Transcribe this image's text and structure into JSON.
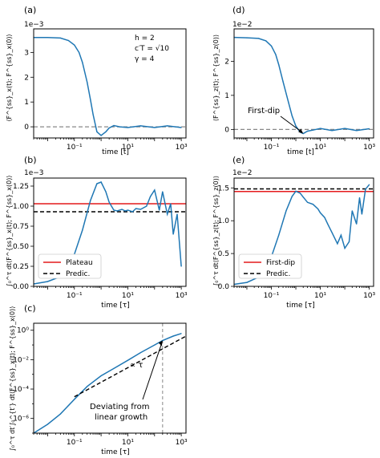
{
  "colors": {
    "series": "#1f77b4",
    "plateau": "#e41a1c",
    "predic": "#000000",
    "zero": "#888888",
    "frame": "#000000"
  },
  "chart_data": [
    {
      "panel": "(a)",
      "type": "line",
      "xscale": "log",
      "xlim": [
        0.003,
        1500
      ],
      "ylim": [
        -0.00045,
        0.00395
      ],
      "ylabel": "⟨F^{ss}_x(t); F^{ss}_x(0)⟩",
      "xlabel": "time [t]",
      "multiplier": "1e−3",
      "yticks": [
        {
          "v": 0,
          "label": "0"
        },
        {
          "v": 0.001,
          "label": "1"
        },
        {
          "v": 0.002,
          "label": "2"
        },
        {
          "v": 0.003,
          "label": "3"
        }
      ],
      "xticks": [
        {
          "v": 0.1,
          "label": "10⁻¹"
        },
        {
          "v": 10,
          "label": "10¹"
        },
        {
          "v": 1000,
          "label": "10³"
        }
      ],
      "params": [
        "h = 2",
        "c′T = √10",
        "γ = 4"
      ],
      "zero_line": true,
      "series": [
        {
          "x": [
            0.003,
            0.01,
            0.03,
            0.06,
            0.1,
            0.15,
            0.2,
            0.3,
            0.4,
            0.5,
            0.7,
            1,
            1.5,
            2,
            3,
            5,
            10,
            30,
            100,
            300,
            1000
          ],
          "y": [
            0.0036,
            0.0036,
            0.00358,
            0.00348,
            0.0033,
            0.003,
            0.0026,
            0.0018,
            0.0011,
            0.0005,
            -0.0002,
            -0.00035,
            -0.0002,
            -5e-05,
            5e-05,
            0.0,
            -3e-05,
            4e-05,
            -3e-05,
            4e-05,
            -3e-05
          ]
        }
      ]
    },
    {
      "panel": "(b)",
      "type": "line",
      "xscale": "log",
      "xlim": [
        0.003,
        1500
      ],
      "ylim": [
        0,
        0.00135
      ],
      "ylabel": "∫₀^τ dt⟨F^{ss}_x(t); F^{ss}_x(0)⟩",
      "xlabel": "time [τ]",
      "multiplier": "1e−3",
      "yticks": [
        {
          "v": 0,
          "label": "0.00"
        },
        {
          "v": 0.00025,
          "label": "0.25"
        },
        {
          "v": 0.0005,
          "label": "0.50"
        },
        {
          "v": 0.00075,
          "label": "0.75"
        },
        {
          "v": 0.001,
          "label": "1.00"
        },
        {
          "v": 0.00125,
          "label": "1.25"
        }
      ],
      "xticks": [
        {
          "v": 0.1,
          "label": "10⁻¹"
        },
        {
          "v": 10,
          "label": "10¹"
        },
        {
          "v": 1000,
          "label": "10³"
        }
      ],
      "hlines": [
        {
          "name": "Plateau",
          "y": 0.00103,
          "color": "#e41a1c",
          "dash": false
        },
        {
          "name": "Predic.",
          "y": 0.00093,
          "color": "#000000",
          "dash": true
        }
      ],
      "legend": "bottom-left",
      "series": [
        {
          "x": [
            0.003,
            0.01,
            0.03,
            0.06,
            0.1,
            0.2,
            0.4,
            0.7,
            1,
            1.5,
            2,
            3,
            4,
            6,
            8,
            10,
            15,
            20,
            30,
            50,
            70,
            100,
            150,
            200,
            300,
            400,
            500,
            700,
            1000
          ],
          "y": [
            3e-05,
            6e-05,
            0.00012,
            0.00025,
            0.0004,
            0.0007,
            0.00107,
            0.00128,
            0.0013,
            0.00118,
            0.00105,
            0.00095,
            0.00094,
            0.00096,
            0.00094,
            0.00095,
            0.00093,
            0.00097,
            0.00096,
            0.001,
            0.00112,
            0.0012,
            0.00095,
            0.00118,
            0.0009,
            0.00103,
            0.00065,
            0.0009,
            0.00025
          ]
        }
      ]
    },
    {
      "panel": "(c)",
      "type": "line",
      "xscale": "log",
      "yscale": "log",
      "xlim": [
        0.003,
        1500
      ],
      "ylim": [
        1e-07,
        3
      ],
      "ylabel": "∫₀^τ dt′∫₀^{t′} dt⟨F^{ss}_x(t); F^{ss}_x(0)⟩",
      "xlabel": "time [τ]",
      "yticks": [
        {
          "v": 1e-06,
          "label": "10⁻⁶"
        },
        {
          "v": 0.0001,
          "label": "10⁻⁴"
        },
        {
          "v": 0.01,
          "label": "10⁻²"
        },
        {
          "v": 1,
          "label": "10⁰"
        }
      ],
      "xticks": [
        {
          "v": 0.1,
          "label": "10⁻¹"
        },
        {
          "v": 10,
          "label": "10¹"
        },
        {
          "v": 1000,
          "label": "10³"
        }
      ],
      "vline_x": 200,
      "fit_label": "∝ τ",
      "annotation": [
        "Deviating from",
        "linear growth"
      ],
      "fit": {
        "x": [
          0.1,
          1500
        ],
        "y": [
          3e-05,
          0.4
        ]
      },
      "series": [
        {
          "x": [
            0.003,
            0.01,
            0.03,
            0.1,
            0.3,
            1,
            3,
            10,
            30,
            100,
            200,
            500,
            1000
          ],
          "y": [
            1e-07,
            4e-07,
            2e-06,
            2e-05,
            0.00015,
            0.0008,
            0.0025,
            0.009,
            0.03,
            0.1,
            0.2,
            0.4,
            0.6
          ]
        }
      ]
    },
    {
      "panel": "(d)",
      "type": "line",
      "xscale": "log",
      "xlim": [
        0.003,
        1500
      ],
      "ylim": [
        -0.0025,
        0.0295
      ],
      "ylabel": "⟨F^{ss}_z(t); F^{ss}_z(0)⟩",
      "xlabel": "time [t]",
      "multiplier": "1e−2",
      "yticks": [
        {
          "v": 0,
          "label": "0"
        },
        {
          "v": 0.01,
          "label": "1"
        },
        {
          "v": 0.02,
          "label": "2"
        }
      ],
      "xticks": [
        {
          "v": 0.1,
          "label": "10⁻¹"
        },
        {
          "v": 10,
          "label": "10¹"
        },
        {
          "v": 1000,
          "label": "10³"
        }
      ],
      "zero_line": true,
      "annotation": "First-dip",
      "series": [
        {
          "x": [
            0.003,
            0.01,
            0.03,
            0.06,
            0.1,
            0.15,
            0.2,
            0.3,
            0.5,
            0.7,
            1,
            1.5,
            2,
            3,
            5,
            10,
            30,
            100,
            300,
            1000
          ],
          "y": [
            0.027,
            0.0269,
            0.0267,
            0.026,
            0.0245,
            0.022,
            0.019,
            0.014,
            0.008,
            0.004,
            0.001,
            -0.0008,
            -0.0012,
            -0.0005,
            -0.0002,
            0.0003,
            -0.0003,
            0.0003,
            -0.0003,
            0.0002
          ]
        }
      ]
    },
    {
      "panel": "(e)",
      "type": "line",
      "xscale": "log",
      "xlim": [
        0.003,
        1500
      ],
      "ylim": [
        0,
        0.0165
      ],
      "ylabel": "∫₀^τ dt⟨F^{ss}_z(t); F^{ss}_z(0)⟩",
      "xlabel": "time [τ]",
      "multiplier": "1e−2",
      "yticks": [
        {
          "v": 0,
          "label": "0.0"
        },
        {
          "v": 0.005,
          "label": "0.5"
        },
        {
          "v": 0.01,
          "label": "1.0"
        },
        {
          "v": 0.015,
          "label": "1.5"
        }
      ],
      "xticks": [
        {
          "v": 0.1,
          "label": "10⁻¹"
        },
        {
          "v": 10,
          "label": "10¹"
        },
        {
          "v": 1000,
          "label": "10³"
        }
      ],
      "hlines": [
        {
          "name": "First-dip",
          "y": 0.01445,
          "color": "#e41a1c",
          "dash": false
        },
        {
          "name": "Predic.",
          "y": 0.01485,
          "color": "#000000",
          "dash": true
        }
      ],
      "legend": "bottom-left",
      "series": [
        {
          "x": [
            0.003,
            0.01,
            0.03,
            0.06,
            0.1,
            0.2,
            0.4,
            0.7,
            1,
            1.5,
            2,
            3,
            5,
            8,
            10,
            15,
            20,
            30,
            50,
            70,
            100,
            150,
            200,
            300,
            400,
            500,
            700,
            1000
          ],
          "y": [
            0.0003,
            0.0006,
            0.0014,
            0.0028,
            0.0045,
            0.0078,
            0.0115,
            0.0137,
            0.0145,
            0.0142,
            0.0136,
            0.0128,
            0.0125,
            0.0118,
            0.0112,
            0.0105,
            0.0095,
            0.0082,
            0.0065,
            0.0078,
            0.0058,
            0.0068,
            0.0115,
            0.0095,
            0.0135,
            0.011,
            0.0148,
            0.0155
          ]
        }
      ]
    }
  ]
}
